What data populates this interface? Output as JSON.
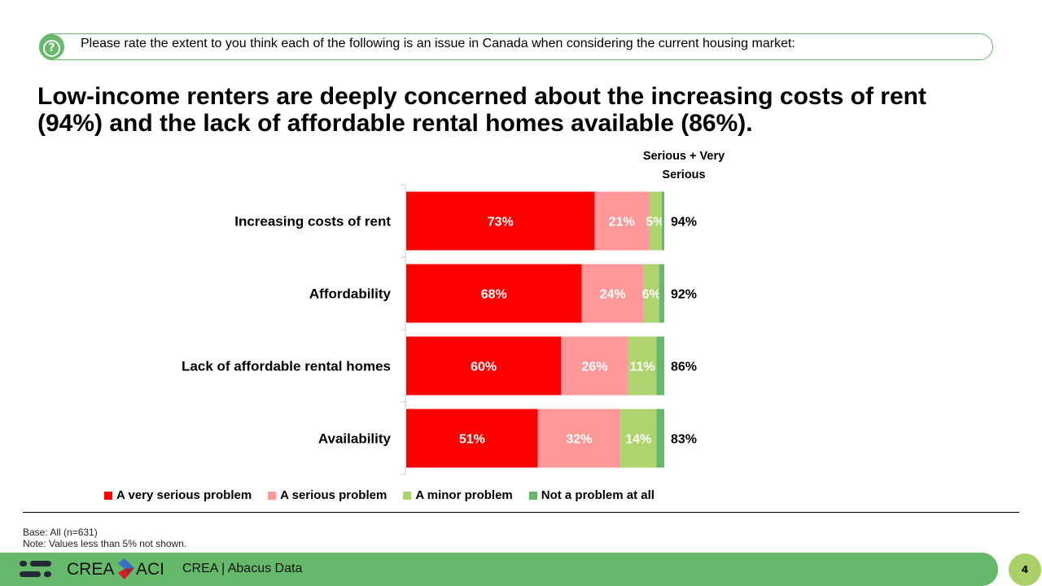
{
  "question": "Please rate the extent to you think each of the following is an issue in Canada when considering the current housing market:",
  "title": "Low-income renters are deeply concerned about the increasing costs of rent (94%) and the lack of affordable rental homes available (86%).",
  "chart_data": {
    "type": "bar",
    "orientation": "horizontal-stacked-100",
    "categories": [
      "Increasing costs of rent",
      "Affordability",
      "Lack of affordable rental homes",
      "Availability"
    ],
    "series": [
      {
        "name": "A very serious problem",
        "color": "#ff0000",
        "values": [
          73,
          68,
          60,
          51
        ],
        "labels": [
          "73%",
          "68%",
          "60%",
          "51%"
        ]
      },
      {
        "name": "A serious problem",
        "color": "#ff9999",
        "values": [
          21,
          24,
          26,
          32
        ],
        "labels": [
          "21%",
          "24%",
          "26%",
          "32%"
        ]
      },
      {
        "name": "A minor problem",
        "color": "#afd36f",
        "values": [
          5,
          6,
          11,
          14
        ],
        "labels": [
          "5%",
          "6%",
          "11%",
          "14%"
        ]
      },
      {
        "name": "Not a problem at all",
        "color": "#66b86a",
        "values": [
          1,
          2,
          3,
          3
        ],
        "labels": [
          "",
          "",
          "",
          ""
        ]
      }
    ],
    "summary_header": "Serious + Very Serious",
    "summary_values": [
      "94%",
      "92%",
      "86%",
      "83%"
    ],
    "legend": "bottom"
  },
  "notes": {
    "base": "Base: All (n=631)",
    "note": "Note: Values less than 5% not shown."
  },
  "footer": {
    "brand": "CREA",
    "brand2": "ACI",
    "text": "CREA | Abacus Data",
    "page": "4"
  }
}
